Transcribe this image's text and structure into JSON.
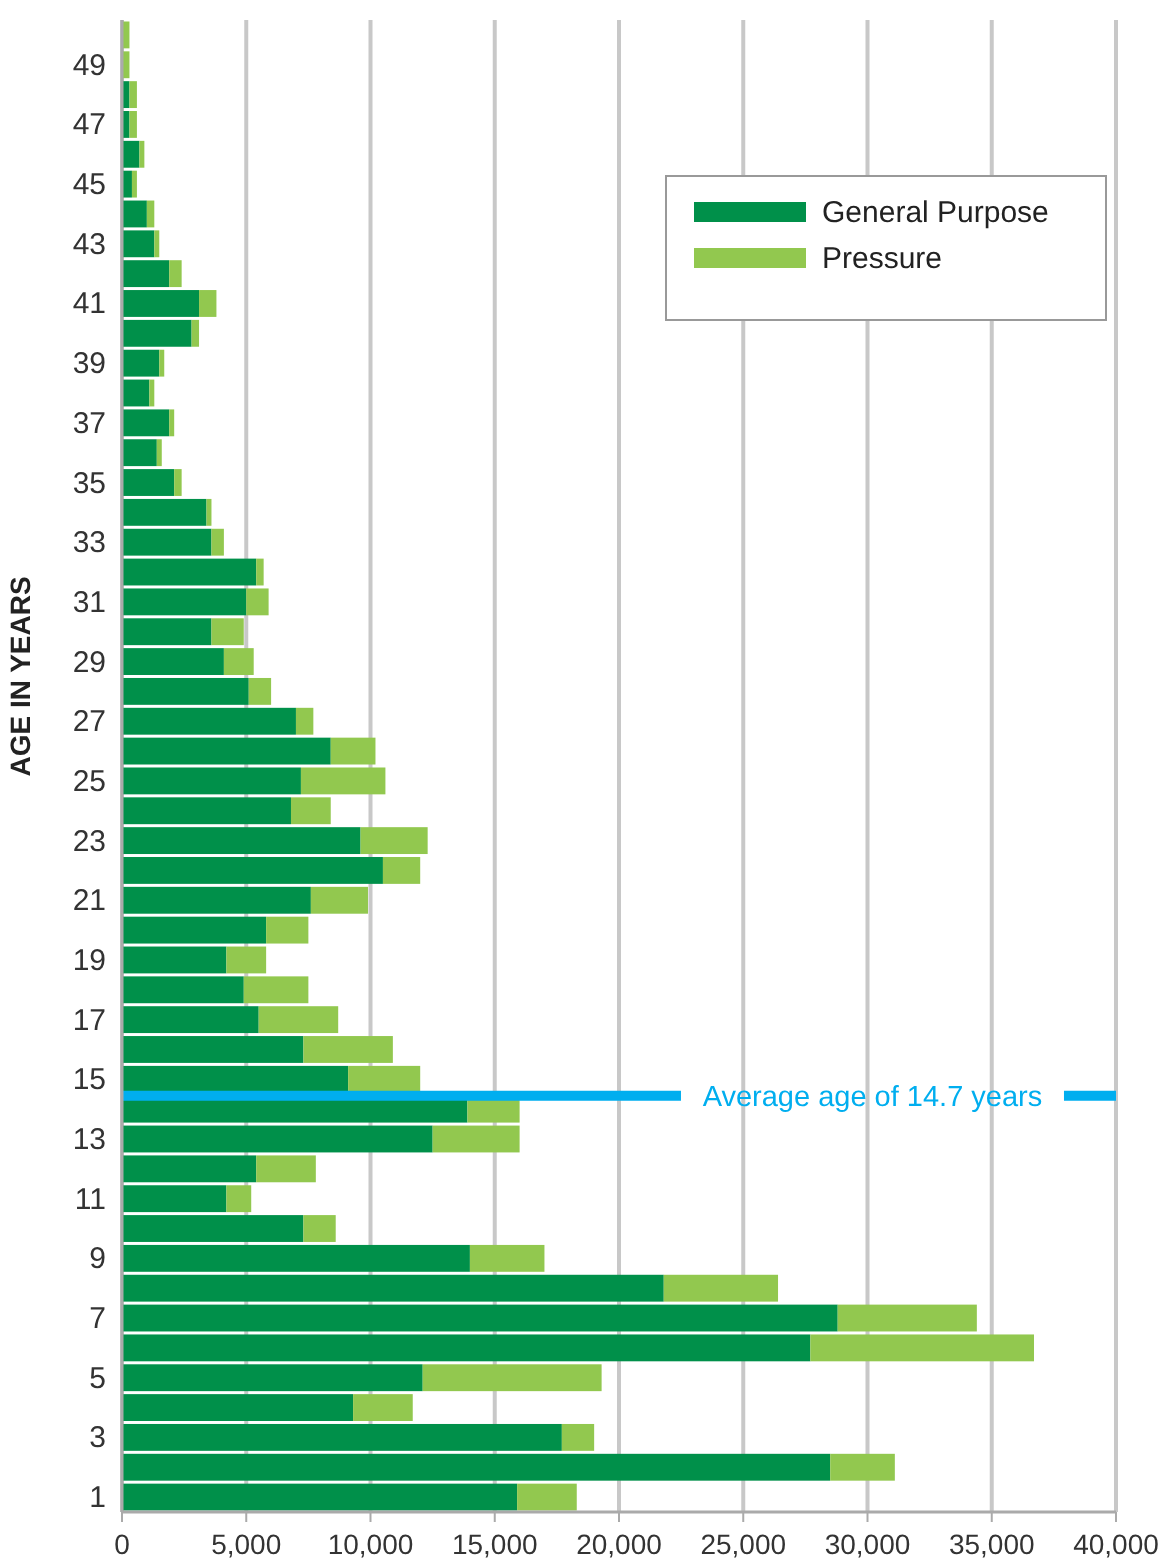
{
  "chart_data": {
    "type": "bar",
    "orientation": "horizontal",
    "stacked": true,
    "ylabel": "AGE IN YEARS",
    "categories": [
      null,
      "49",
      null,
      "47",
      null,
      "45",
      null,
      "43",
      null,
      "41",
      null,
      "39",
      null,
      "37",
      null,
      "35",
      null,
      "33",
      null,
      "31",
      null,
      "29",
      null,
      "27",
      null,
      "25",
      null,
      "23",
      null,
      "21",
      null,
      "19",
      null,
      "17",
      null,
      "15",
      null,
      "13",
      null,
      "11",
      null,
      "9",
      null,
      "7",
      null,
      "5",
      null,
      "3",
      null,
      "1"
    ],
    "series": [
      {
        "name": "General Purpose",
        "color": "#00904a",
        "values": [
          0,
          0,
          300,
          300,
          700,
          400,
          1000,
          1300,
          1900,
          3100,
          2800,
          1500,
          1100,
          1900,
          1400,
          2100,
          3400,
          3600,
          5400,
          5000,
          3600,
          4100,
          5100,
          7000,
          8400,
          7200,
          6800,
          9600,
          10500,
          7600,
          5800,
          4200,
          4900,
          5500,
          7300,
          9100,
          13900,
          12500,
          5400,
          4200,
          7300,
          14000,
          21800,
          28800,
          27700,
          12100,
          9300,
          17700,
          28500,
          15900
        ]
      },
      {
        "name": "Pressure",
        "color": "#92c84f",
        "values": [
          300,
          300,
          300,
          300,
          200,
          200,
          300,
          200,
          500,
          700,
          300,
          200,
          200,
          200,
          200,
          300,
          200,
          500,
          300,
          900,
          1300,
          1200,
          900,
          700,
          1800,
          3400,
          1600,
          2700,
          1500,
          2300,
          1700,
          1600,
          2600,
          3200,
          3600,
          2900,
          2100,
          3500,
          2400,
          1000,
          1300,
          3000,
          4600,
          5600,
          9000,
          7200,
          2400,
          1300,
          2600,
          2400
        ]
      }
    ],
    "xlim": [
      0,
      40000
    ],
    "xticks": [
      0,
      {
        "value": 5000,
        "label": "5,000"
      },
      {
        "value": 10000,
        "label": "10,000"
      },
      {
        "value": 15000,
        "label": "15,000"
      },
      {
        "value": 20000,
        "label": "20,000"
      },
      {
        "value": 25000,
        "label": "25,000"
      },
      {
        "value": 30000,
        "label": "30,000"
      },
      {
        "value": 35000,
        "label": "35,000"
      },
      {
        "value": 40000,
        "label": "40,000"
      }
    ],
    "grid": "x",
    "legend": "top right",
    "annotations": [
      "Average age of 14.7 years"
    ]
  }
}
